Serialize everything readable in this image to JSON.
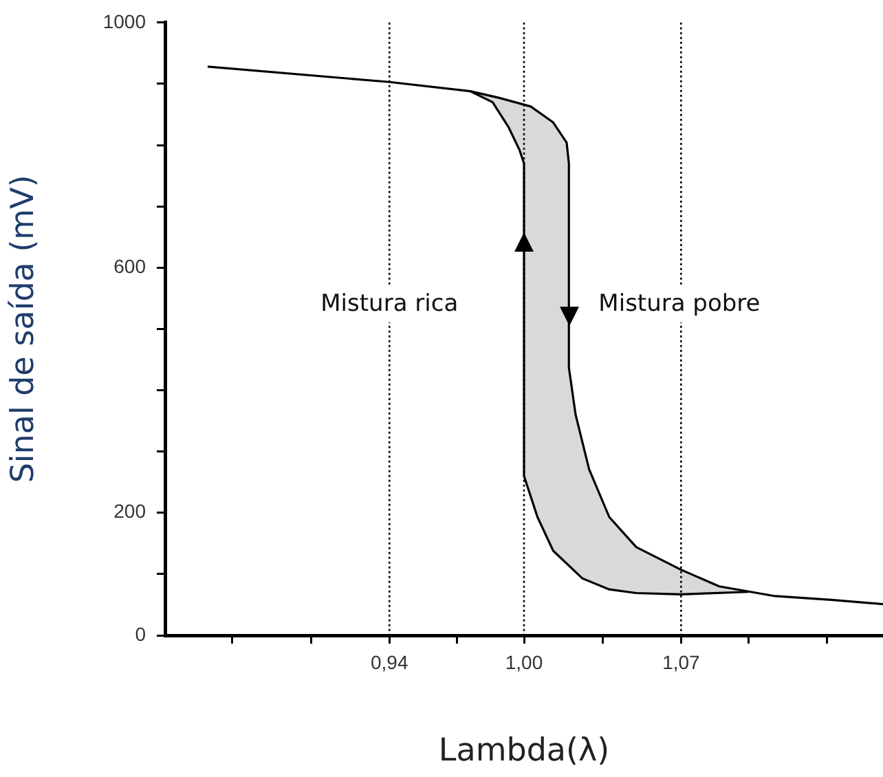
{
  "chart_data": {
    "type": "line",
    "xlabel": "Lambda(λ)",
    "ylabel": "Sinal de saída (mV)",
    "xlim": [
      0.84,
      1.16
    ],
    "ylim": [
      0,
      1000
    ],
    "xticks": [
      {
        "value": 0.87,
        "label": null
      },
      {
        "value": 0.905,
        "label": null
      },
      {
        "value": 0.94,
        "label": "0,94"
      },
      {
        "value": 0.97,
        "label": null
      },
      {
        "value": 1.0,
        "label": "1,00"
      },
      {
        "value": 1.035,
        "label": null
      },
      {
        "value": 1.07,
        "label": "1,07"
      },
      {
        "value": 1.1,
        "label": null
      },
      {
        "value": 1.135,
        "label": null
      }
    ],
    "yticks": [
      0,
      {
        "value": 100,
        "label": null
      },
      200,
      {
        "value": 300,
        "label": null
      },
      {
        "value": 400,
        "label": null
      },
      {
        "value": 500,
        "label": null
      },
      600,
      {
        "value": 700,
        "label": null
      },
      {
        "value": 800,
        "label": null
      },
      {
        "value": 900,
        "label": null
      },
      1000
    ],
    "series": [
      {
        "type": "line",
        "color": "#000000",
        "x": [
          0.859,
          0.94,
          0.976,
          0.989,
          1.003,
          1.013,
          1.019,
          1.02,
          1.02,
          1.023,
          1.029,
          1.038,
          1.05,
          1.07,
          1.087,
          1.112,
          1.137,
          1.16
        ],
        "values": [
          928,
          903,
          888,
          877,
          863,
          837,
          804,
          770,
          437,
          360,
          271,
          193,
          144,
          107,
          80,
          64,
          58,
          51
        ]
      },
      {
        "type": "line",
        "color": "#000000",
        "x": [
          1.1,
          1.07,
          1.05,
          1.038,
          1.026,
          1.013,
          1.006,
          1.0,
          1.0,
          0.998,
          0.993,
          0.986,
          0.976
        ],
        "values": [
          71,
          67,
          69,
          75,
          93,
          138,
          193,
          260,
          770,
          792,
          830,
          870,
          888
        ]
      }
    ],
    "ref_lines": [
      {
        "axis": "x",
        "value": 0.94,
        "line_style": "dotted",
        "color": "#000000"
      },
      {
        "axis": "x",
        "value": 1.0,
        "line_style": "dotted",
        "color": "#000000"
      },
      {
        "axis": "x",
        "value": 1.07,
        "line_style": "dotted",
        "color": "#000000"
      }
    ],
    "annotations": [
      "Mistura rica",
      "Mistura pobre"
    ],
    "marker": "none",
    "line_style": "solid",
    "legend": false
  }
}
